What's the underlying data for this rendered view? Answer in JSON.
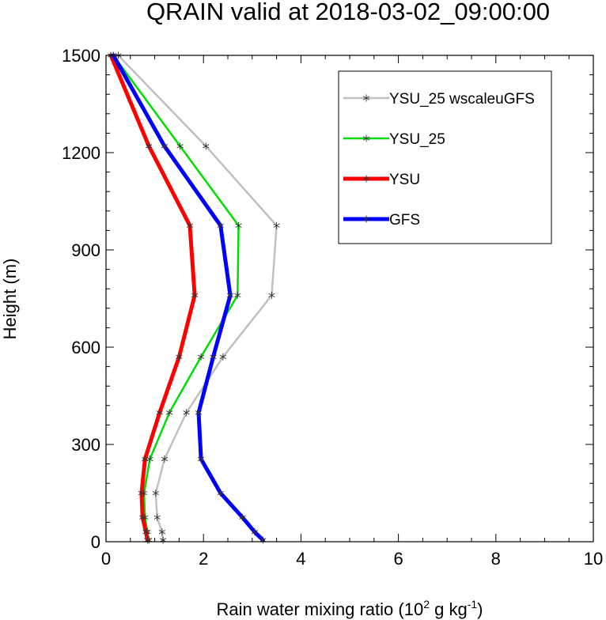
{
  "chart_data": {
    "type": "line",
    "title": "QRAIN valid at 2018-03-02_09:00:00",
    "xlabel": {
      "prefix": "Rain water mixing ratio (10",
      "sup1": "2",
      "mid": " g kg",
      "sup2": "-1",
      "suffix": ")"
    },
    "ylabel": "Height (m)",
    "xlim": [
      0,
      10
    ],
    "ylim": [
      0,
      1500
    ],
    "xticks": [
      0,
      2,
      4,
      6,
      8,
      10
    ],
    "yticks": [
      0,
      300,
      600,
      900,
      1200,
      1500
    ],
    "xtick_labels": [
      "0",
      "2",
      "4",
      "6",
      "8",
      "10"
    ],
    "ytick_labels": [
      "0",
      "300",
      "600",
      "900",
      "1200",
      "1500"
    ],
    "legend_position": "top-right",
    "grid": false,
    "series": [
      {
        "name": "YSU_25 wscaleuGFS",
        "color": "#c0c0c0",
        "width": 2.5,
        "points": [
          [
            1.17,
            5
          ],
          [
            1.15,
            30
          ],
          [
            1.05,
            75
          ],
          [
            1.02,
            150
          ],
          [
            1.2,
            255
          ],
          [
            1.65,
            398
          ],
          [
            2.4,
            570
          ],
          [
            3.4,
            760
          ],
          [
            3.5,
            975
          ],
          [
            2.05,
            1220
          ],
          [
            0.25,
            1500
          ]
        ]
      },
      {
        "name": "YSU_25",
        "color": "#00dd00",
        "width": 2.5,
        "points": [
          [
            0.88,
            5
          ],
          [
            0.85,
            30
          ],
          [
            0.8,
            75
          ],
          [
            0.78,
            150
          ],
          [
            0.9,
            255
          ],
          [
            1.3,
            398
          ],
          [
            1.95,
            570
          ],
          [
            2.7,
            760
          ],
          [
            2.72,
            975
          ],
          [
            1.52,
            1220
          ],
          [
            0.15,
            1500
          ]
        ]
      },
      {
        "name": "YSU",
        "color": "#ff0000",
        "width": 5,
        "points": [
          [
            0.85,
            5
          ],
          [
            0.82,
            30
          ],
          [
            0.75,
            75
          ],
          [
            0.73,
            150
          ],
          [
            0.8,
            255
          ],
          [
            1.1,
            398
          ],
          [
            1.5,
            570
          ],
          [
            1.82,
            760
          ],
          [
            1.72,
            975
          ],
          [
            0.88,
            1220
          ],
          [
            0.1,
            1500
          ]
        ]
      },
      {
        "name": "GFS",
        "color": "#0000ff",
        "width": 5,
        "points": [
          [
            3.22,
            5
          ],
          [
            3.05,
            30
          ],
          [
            2.8,
            75
          ],
          [
            2.35,
            150
          ],
          [
            1.95,
            255
          ],
          [
            1.9,
            398
          ],
          [
            2.2,
            570
          ],
          [
            2.55,
            760
          ],
          [
            2.35,
            975
          ],
          [
            1.2,
            1220
          ],
          [
            0.15,
            1500
          ]
        ]
      }
    ]
  }
}
